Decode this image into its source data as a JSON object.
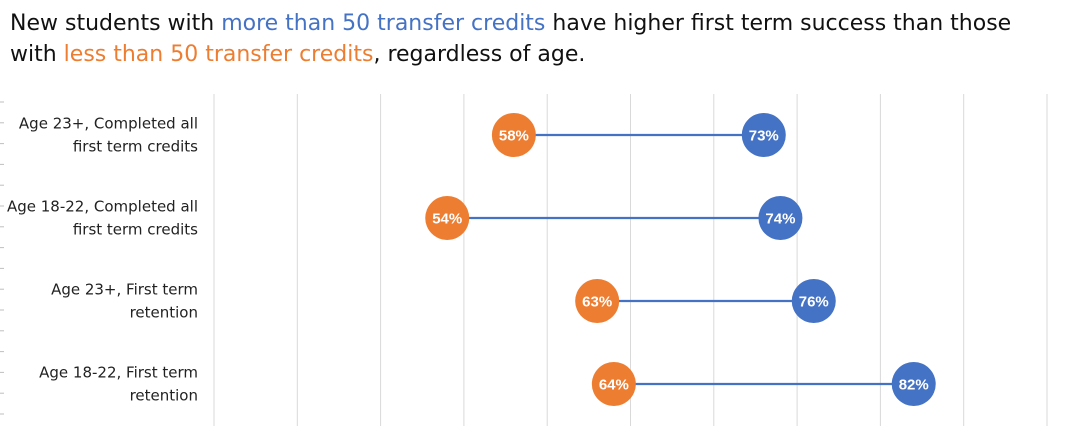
{
  "title": {
    "part1": "New students with ",
    "highlight_more": "more than 50 transfer credits",
    "part2": " have higher first term success than those with ",
    "highlight_less": "less than 50 transfer credits",
    "part3": ", regardless of age.",
    "colors": {
      "more": "#4472c4",
      "less": "#ed7d31"
    }
  },
  "chart_data": {
    "type": "dumbbell",
    "title": "",
    "xlim": [
      40,
      90
    ],
    "grid": true,
    "legend": "none",
    "categories": [
      [
        "Age 23+, Completed all",
        "first term credits"
      ],
      [
        "Age 18-22, Completed all",
        "first term credits"
      ],
      [
        "Age 23+, First term",
        "retention"
      ],
      [
        "Age 18-22, First term",
        "retention"
      ]
    ],
    "series": [
      {
        "values": [
          58,
          54,
          63,
          64
        ],
        "labels": [
          "58%",
          "54%",
          "63%",
          "64%"
        ],
        "color": "#ed7d31"
      },
      {
        "values": [
          73,
          74,
          76,
          82
        ],
        "labels": [
          "73%",
          "74%",
          "76%",
          "82%"
        ],
        "color": "#4472c4"
      }
    ],
    "line_color": "#4472c4"
  }
}
